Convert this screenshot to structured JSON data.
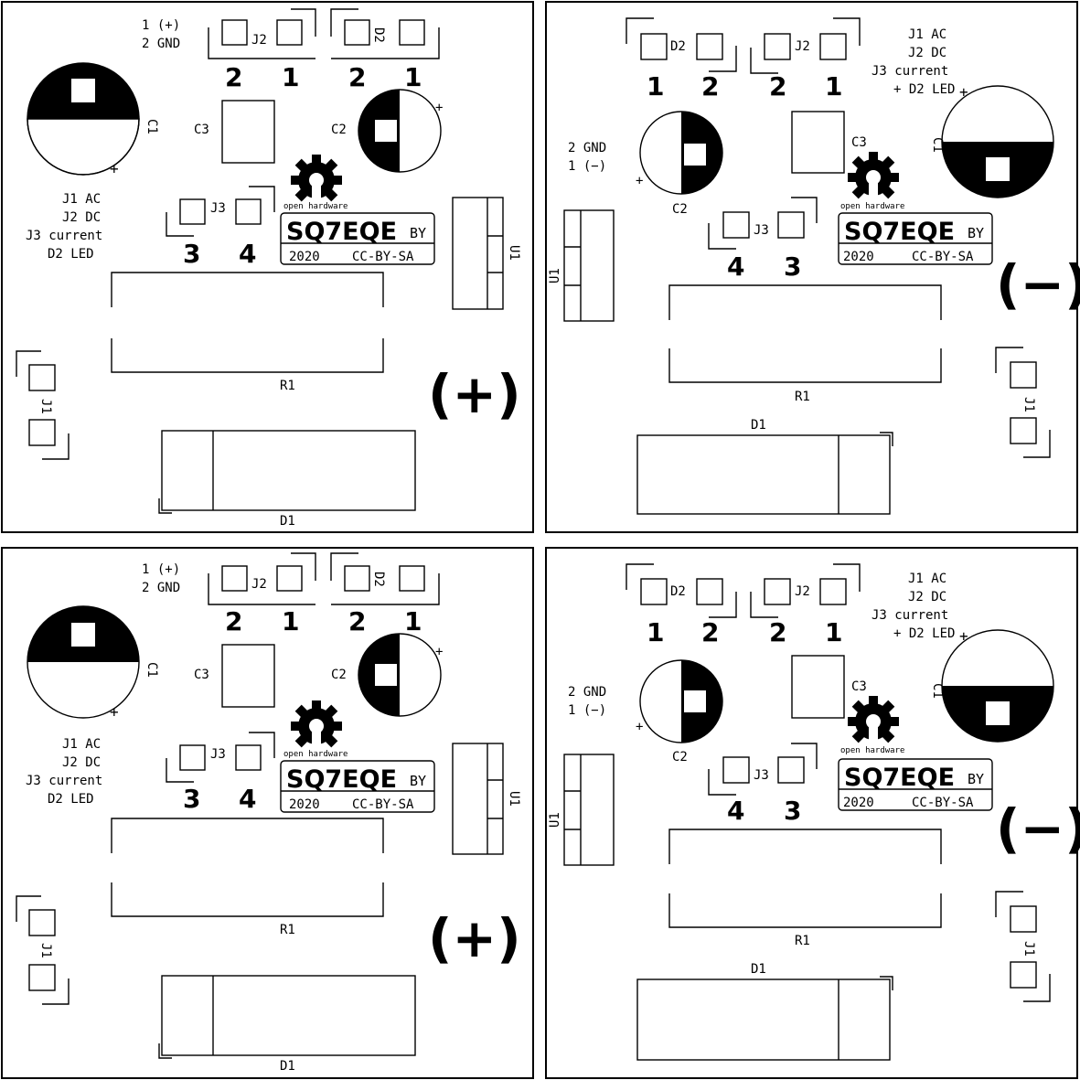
{
  "panels": [
    {
      "id": "positive-a",
      "polarity_symbol": "(+)",
      "legend": [
        "J1 AC",
        "J2 DC",
        "J3 current",
        "D2 LED"
      ],
      "connector_note": [
        "1 (+)",
        "2 GND"
      ],
      "labels": {
        "C1": "C1",
        "C2": "C2",
        "C3": "C3",
        "J1": "J1",
        "J2": "J2",
        "J3": "J3",
        "D1": "D1",
        "D2": "D2",
        "R1": "R1",
        "U1": "U1"
      },
      "pin_numbers": [
        "2",
        "1",
        "2",
        "1",
        "3",
        "4"
      ],
      "logo": {
        "open_hw": "open hardware",
        "brand": "SQ7EQE",
        "by": "BY",
        "license": "CC-BY-SA",
        "year": "2020"
      }
    },
    {
      "id": "negative-a",
      "polarity_symbol": "(−)",
      "legend": [
        "J1 AC",
        "J2 DC",
        "J3 current",
        "+ D2 LED"
      ],
      "connector_note": [
        "2 GND",
        "1 (−)"
      ],
      "labels": {
        "C1": "C1",
        "C2": "C2",
        "C3": "C3",
        "J1": "J1",
        "J2": "J2",
        "J3": "J3",
        "D1": "D1",
        "D2": "D2",
        "R1": "R1",
        "U1": "U1"
      },
      "pin_numbers": [
        "1",
        "2",
        "2",
        "1",
        "4",
        "3"
      ],
      "logo": {
        "open_hw": "open hardware",
        "brand": "SQ7EQE",
        "by": "BY",
        "license": "CC-BY-SA",
        "year": "2020"
      }
    },
    {
      "id": "positive-b",
      "polarity_symbol": "(+)",
      "legend": [
        "J1 AC",
        "J2 DC",
        "J3 current",
        "D2 LED"
      ],
      "connector_note": [
        "1 (+)",
        "2 GND"
      ],
      "labels": {
        "C1": "C1",
        "C2": "C2",
        "C3": "C3",
        "J1": "J1",
        "J2": "J2",
        "J3": "J3",
        "D1": "D1",
        "D2": "D2",
        "R1": "R1",
        "U1": "U1"
      },
      "pin_numbers": [
        "2",
        "1",
        "2",
        "1",
        "3",
        "4"
      ],
      "logo": {
        "open_hw": "open hardware",
        "brand": "SQ7EQE",
        "by": "BY",
        "license": "CC-BY-SA",
        "year": "2020"
      }
    },
    {
      "id": "negative-b",
      "polarity_symbol": "(−)",
      "legend": [
        "J1 AC",
        "J2 DC",
        "J3 current",
        "+ D2 LED"
      ],
      "connector_note": [
        "2 GND",
        "1 (−)"
      ],
      "labels": {
        "C1": "C1",
        "C2": "C2",
        "C3": "C3",
        "J1": "J1",
        "J2": "J2",
        "J3": "J3",
        "D1": "D1",
        "D2": "D2",
        "R1": "R1",
        "U1": "U1"
      },
      "pin_numbers": [
        "1",
        "2",
        "2",
        "1",
        "4",
        "3"
      ],
      "logo": {
        "open_hw": "open hardware",
        "brand": "SQ7EQE",
        "by": "BY",
        "license": "CC-BY-SA",
        "year": "2020"
      }
    }
  ],
  "plus_marks": "+"
}
